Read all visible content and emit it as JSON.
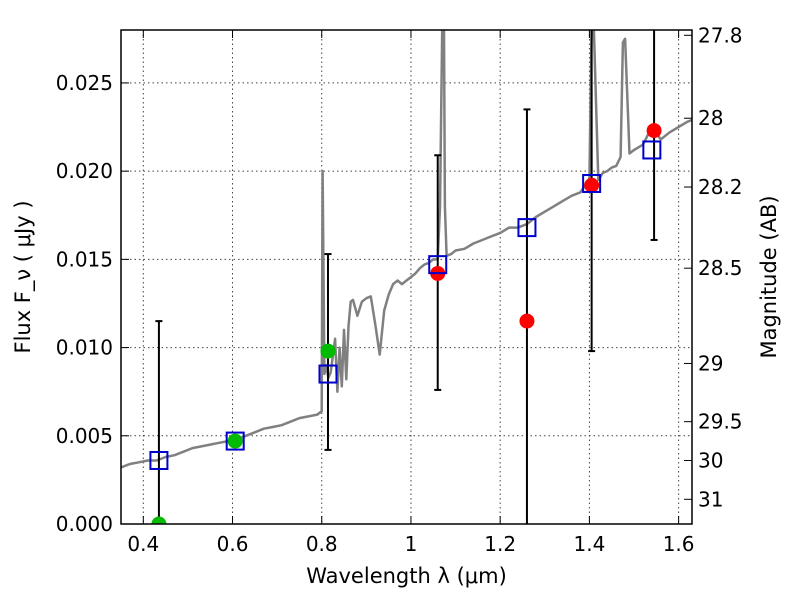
{
  "chart_data": {
    "type": "scatter",
    "title": "",
    "xlabel": "Wavelength  λ (μm)",
    "ylabel": "Flux  F_ν  ( μJy )",
    "ylabel_right": "Magnitude (AB)",
    "xlim": [
      0.35,
      1.63
    ],
    "ylim": [
      0.0,
      0.028
    ],
    "x_ticks": [
      0.4,
      0.6,
      0.8,
      1.0,
      1.2,
      1.4,
      1.6
    ],
    "x_tick_labels": [
      "0.4",
      "0.6",
      "0.8",
      "1",
      "1.2",
      "1.4",
      "1.6"
    ],
    "y_ticks": [
      0.0,
      0.005,
      0.01,
      0.015,
      0.02,
      0.025
    ],
    "y_tick_labels": [
      "0.000",
      "0.005",
      "0.010",
      "0.015",
      "0.020",
      "0.025"
    ],
    "right_axis_ticks": [
      {
        "label": "27.8",
        "flux": 0.0277
      },
      {
        "label": "28",
        "flux": 0.023
      },
      {
        "label": "28.2",
        "flux": 0.0191
      },
      {
        "label": "28.5",
        "flux": 0.0145
      },
      {
        "label": "29",
        "flux": 0.0091
      },
      {
        "label": "29.5",
        "flux": 0.0058
      },
      {
        "label": "30",
        "flux": 0.0036
      },
      {
        "label": "31",
        "flux": 0.0014
      }
    ],
    "grid": true,
    "colors": {
      "model": "#808080",
      "model_photometry": "#0000cc",
      "observed_red": "#ff0000",
      "observed_green": "#00bb00",
      "errorbar": "#000000"
    },
    "series": [
      {
        "kind": "model_spectrum",
        "x": [
          0.35,
          0.37,
          0.39,
          0.41,
          0.43,
          0.45,
          0.47,
          0.49,
          0.51,
          0.53,
          0.55,
          0.57,
          0.59,
          0.61,
          0.63,
          0.65,
          0.67,
          0.69,
          0.71,
          0.73,
          0.75,
          0.77,
          0.79,
          0.8,
          0.802,
          0.806,
          0.81,
          0.815,
          0.82,
          0.83,
          0.835,
          0.84,
          0.845,
          0.85,
          0.855,
          0.86,
          0.865,
          0.87,
          0.88,
          0.89,
          0.9,
          0.91,
          0.92,
          0.93,
          0.94,
          0.95,
          0.96,
          0.97,
          0.98,
          0.99,
          1.0,
          1.01,
          1.02,
          1.03,
          1.04,
          1.05,
          1.06,
          1.065,
          1.07,
          1.072,
          1.074,
          1.076,
          1.08,
          1.09,
          1.1,
          1.12,
          1.14,
          1.16,
          1.18,
          1.2,
          1.22,
          1.24,
          1.26,
          1.28,
          1.3,
          1.32,
          1.34,
          1.36,
          1.38,
          1.39,
          1.4,
          1.405,
          1.41,
          1.42,
          1.43,
          1.44,
          1.45,
          1.46,
          1.47,
          1.475,
          1.48,
          1.49,
          1.5,
          1.52,
          1.54,
          1.56,
          1.58,
          1.6,
          1.62,
          1.63
        ],
        "y": [
          0.0032,
          0.0034,
          0.0035,
          0.0036,
          0.0036,
          0.0038,
          0.0039,
          0.0041,
          0.0043,
          0.0044,
          0.0045,
          0.0046,
          0.0047,
          0.0048,
          0.005,
          0.0052,
          0.0054,
          0.0055,
          0.0056,
          0.0058,
          0.006,
          0.0061,
          0.0062,
          0.0064,
          0.02,
          0.0085,
          0.009,
          0.0083,
          0.0086,
          0.0105,
          0.0075,
          0.01,
          0.0078,
          0.011,
          0.0082,
          0.0112,
          0.0126,
          0.0127,
          0.0118,
          0.0126,
          0.0128,
          0.0129,
          0.0113,
          0.0096,
          0.0121,
          0.013,
          0.0136,
          0.0138,
          0.0136,
          0.0138,
          0.014,
          0.0142,
          0.0145,
          0.0147,
          0.0148,
          0.015,
          0.015,
          0.018,
          0.028,
          0.028,
          0.028,
          0.018,
          0.0152,
          0.0153,
          0.0155,
          0.0156,
          0.0159,
          0.0161,
          0.0163,
          0.0165,
          0.0168,
          0.0168,
          0.017,
          0.0174,
          0.0177,
          0.018,
          0.0183,
          0.0186,
          0.0188,
          0.0192,
          0.0195,
          0.028,
          0.028,
          0.0195,
          0.0199,
          0.02,
          0.0202,
          0.0203,
          0.0208,
          0.0273,
          0.0275,
          0.021,
          0.0212,
          0.0215,
          0.0225,
          0.0218,
          0.0222,
          0.0225,
          0.0228,
          0.0229
        ]
      },
      {
        "kind": "model_photometry",
        "marker": "open-square",
        "x": [
          0.435,
          0.606,
          0.814,
          1.06,
          1.26,
          1.405,
          1.54
        ],
        "y": [
          0.0036,
          0.0047,
          0.0085,
          0.0147,
          0.0168,
          0.0193,
          0.0212
        ]
      },
      {
        "kind": "observed_red",
        "marker": "filled-circle",
        "x": [
          1.06,
          1.26,
          1.405,
          1.545
        ],
        "y": [
          0.0142,
          0.0115,
          0.0192,
          0.0223
        ],
        "yerr_low": [
          0.0076,
          0.0,
          0.0098,
          0.0161
        ],
        "yerr_high": [
          0.0209,
          0.0235,
          0.028,
          0.028
        ]
      },
      {
        "kind": "observed_green",
        "marker": "filled-circle",
        "x": [
          0.435,
          0.606,
          0.814
        ],
        "y": [
          0.0,
          0.0047,
          0.0098
        ],
        "yerr_low": [
          0.0,
          null,
          0.0042
        ],
        "yerr_high": [
          0.0115,
          null,
          0.0153
        ]
      }
    ]
  }
}
